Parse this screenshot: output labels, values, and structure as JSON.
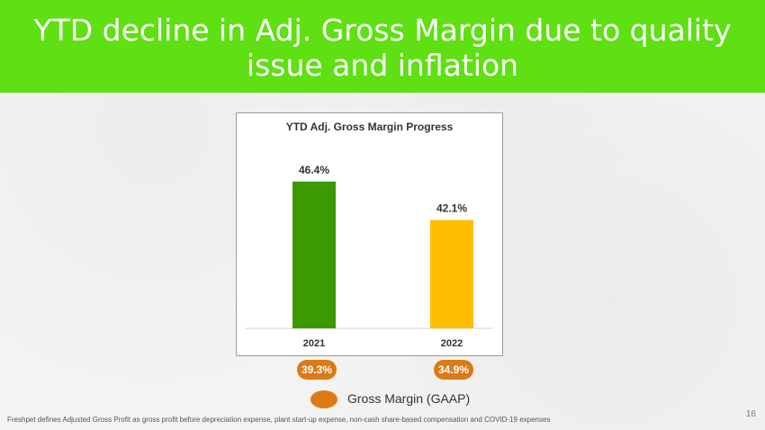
{
  "slide": {
    "title": "YTD decline in Adj. Gross Margin due to quality issue and inflation",
    "footnote": "Freshpet defines Adjusted Gross Profit as gross profit before depreciation expense, plant start-up expense, non-cash share-based compensation and COVID-19 expenses",
    "page_number": "16"
  },
  "chart_data": {
    "type": "bar",
    "title": "YTD Adj. Gross Margin Progress",
    "categories": [
      "2021",
      "2022"
    ],
    "values": [
      46.4,
      42.1
    ],
    "data_labels": [
      "46.4%",
      "42.1%"
    ],
    "bar_colors": [
      "#3c9a00",
      "#ffbe00"
    ],
    "ylim": [
      30,
      50
    ],
    "grid": false,
    "xlabel": "",
    "ylabel": ""
  },
  "gaap": {
    "labels": [
      "39.3%",
      "34.9%"
    ],
    "legend_label": "Gross Margin (GAAP)",
    "color": "#dc7a14"
  }
}
